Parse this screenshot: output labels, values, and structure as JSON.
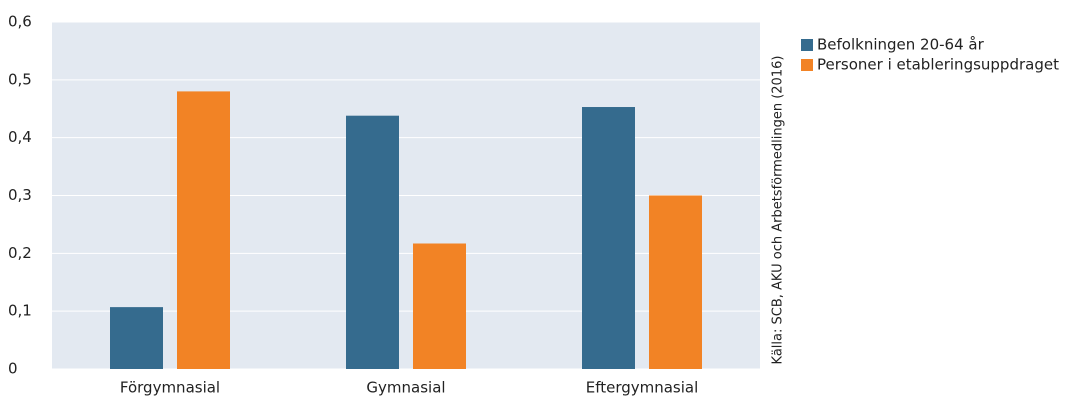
{
  "chart_data": {
    "type": "bar",
    "categories": [
      "Förgymnasial",
      "Gymnasial",
      "Eftergymnasial"
    ],
    "series": [
      {
        "name": "Befolkningen 20-64 år",
        "color": "#356b8e",
        "values": [
          0.107,
          0.438,
          0.453
        ]
      },
      {
        "name": "Personer i etableringsuppdraget",
        "color": "#f28325",
        "values": [
          0.48,
          0.217,
          0.3
        ]
      }
    ],
    "ylim": [
      0,
      0.6
    ],
    "yticks": [
      0,
      {
        "value": 0.1,
        "label": "0,1"
      },
      {
        "value": 0.2,
        "label": "0,2"
      },
      {
        "value": 0.3,
        "label": "0,3"
      },
      {
        "value": 0.4,
        "label": "0,4"
      },
      {
        "value": 0.5,
        "label": "0,5"
      },
      {
        "value": 0.6,
        "label": "0,6"
      }
    ],
    "grid": true,
    "source": "Källa: SCB, AKU och Arbetsförmedlingen (2016)"
  }
}
